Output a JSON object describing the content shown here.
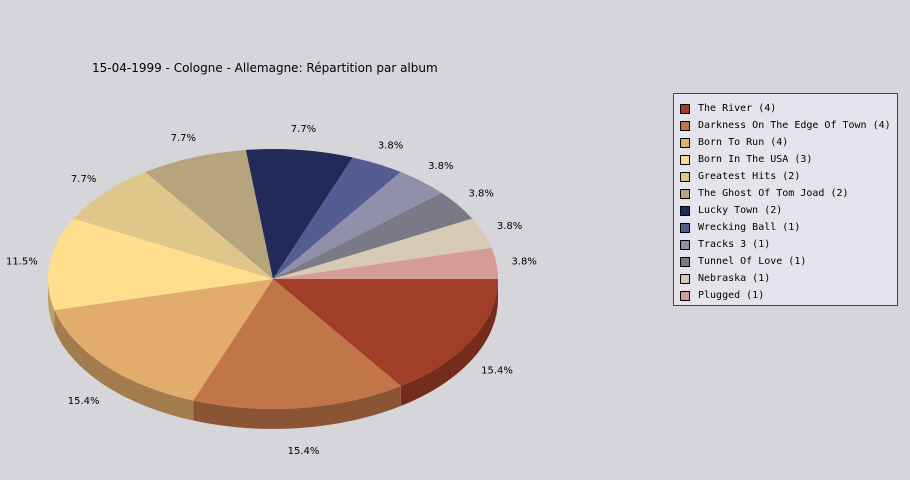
{
  "chart_data": {
    "type": "pie",
    "title": "15-04-1999 - Cologne - Allemagne:  Répartition par album",
    "legend_position": "right",
    "slices": [
      {
        "label": "The River (4)",
        "value": 4,
        "percent_label": "15.4%",
        "color": "#a13e28"
      },
      {
        "label": "Darkness On The Edge Of Town (4)",
        "value": 4,
        "percent_label": "15.4%",
        "color": "#c1764a"
      },
      {
        "label": "Born To Run (4)",
        "value": 4,
        "percent_label": "15.4%",
        "color": "#e2ac6d"
      },
      {
        "label": "Born In The USA (3)",
        "value": 3,
        "percent_label": "11.5%",
        "color": "#ffdf8d"
      },
      {
        "label": "Greatest Hits (2)",
        "value": 2,
        "percent_label": "7.7%",
        "color": "#dfc68a"
      },
      {
        "label": "The Ghost Of Tom Joad (2)",
        "value": 2,
        "percent_label": "7.7%",
        "color": "#b6a47c"
      },
      {
        "label": "Lucky Town (2)",
        "value": 2,
        "percent_label": "7.7%",
        "color": "#222a58"
      },
      {
        "label": "Wrecking Ball (1)",
        "value": 1,
        "percent_label": "3.8%",
        "color": "#545c92"
      },
      {
        "label": "Tracks 3 (1)",
        "value": 1,
        "percent_label": "3.8%",
        "color": "#9090ab"
      },
      {
        "label": "Tunnel Of Love (1)",
        "value": 1,
        "percent_label": "3.8%",
        "color": "#7a7986"
      },
      {
        "label": "Nebraska (1)",
        "value": 1,
        "percent_label": "3.8%",
        "color": "#d6cab4"
      },
      {
        "label": "Plugged (1)",
        "value": 1,
        "percent_label": "3.8%",
        "color": "#d69c98"
      }
    ]
  }
}
